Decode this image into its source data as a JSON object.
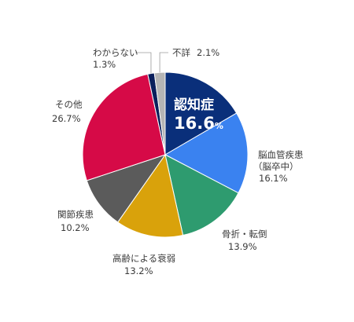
{
  "chart_data": {
    "type": "pie",
    "title": "",
    "slices": [
      {
        "label": "認知症",
        "value": 16.6,
        "display": "16.6",
        "unit": "%",
        "color": "#0a2f7a"
      },
      {
        "label_lines": [
          "脳血管疾患",
          "（脳卒中）"
        ],
        "value": 16.1,
        "display": "16.1%",
        "color": "#3a82f0"
      },
      {
        "label": "骨折・転倒",
        "value": 13.9,
        "display": "13.9%",
        "color": "#2e9b6f"
      },
      {
        "label": "高齢による衰弱",
        "value": 13.2,
        "display": "13.2%",
        "color": "#d9a20b"
      },
      {
        "label": "関節疾患",
        "value": 10.2,
        "display": "10.2%",
        "color": "#5b5b5b"
      },
      {
        "label": "その他",
        "value": 26.7,
        "display": "26.7%",
        "color": "#d60a47"
      },
      {
        "label": "わからない",
        "value": 1.3,
        "display": "1.3%",
        "color": "#0a1f5c"
      },
      {
        "label": "不詳",
        "value": 2.1,
        "display": "2.1%",
        "color": "#b5b5b5"
      }
    ]
  }
}
